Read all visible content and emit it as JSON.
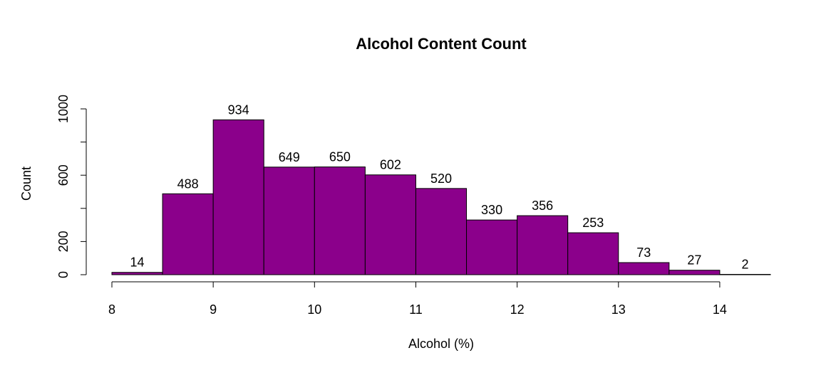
{
  "chart_data": {
    "type": "bar",
    "title": "Alcohol Content Count",
    "xlabel": "Alcohol (%)",
    "ylabel": "Count",
    "bin_edges": [
      8,
      8.5,
      9,
      9.5,
      10,
      10.5,
      11,
      11.5,
      12,
      12.5,
      13,
      13.5,
      14,
      14.5
    ],
    "values": [
      14,
      488,
      934,
      649,
      650,
      602,
      520,
      330,
      356,
      253,
      73,
      27,
      2
    ],
    "xlim": [
      8,
      14.5
    ],
    "ylim": [
      0,
      1000
    ],
    "x_ticks": [
      8,
      9,
      10,
      11,
      12,
      13,
      14
    ],
    "y_ticks": [
      0,
      200,
      400,
      600,
      800,
      1000
    ],
    "y_tick_labels": [
      "0",
      "200",
      "",
      "600",
      "",
      "1000"
    ],
    "bar_color": "#8B008B",
    "grid": false
  }
}
